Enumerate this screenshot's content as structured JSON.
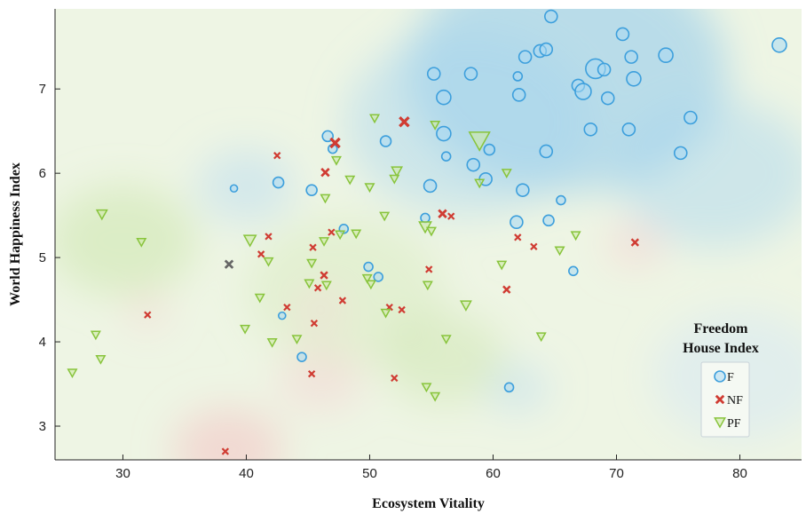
{
  "chart_data": {
    "type": "scatter",
    "xlabel": "Ecosystem Vitality",
    "ylabel": "World Happiness Index",
    "xlim": [
      24.5,
      85
    ],
    "ylim": [
      2.6,
      7.95
    ],
    "xticks": [
      30,
      40,
      50,
      60,
      70,
      80
    ],
    "yticks": [
      3,
      4,
      5,
      6,
      7
    ],
    "grid": false,
    "legend": {
      "title_line1": "Freedom",
      "title_line2": "House Index",
      "placement": "right"
    },
    "colors": {
      "F": "#3d9fdc",
      "NF": "#d03c33",
      "PF": "#88c43c",
      "other": "#666666"
    },
    "background_regions": [
      {
        "x": 66,
        "y": 7.2,
        "r": 13,
        "color": "#8ec9ec",
        "alpha": 0.55
      },
      {
        "x": 58,
        "y": 6.6,
        "r": 10,
        "color": "#a6d4ef",
        "alpha": 0.45
      },
      {
        "x": 78,
        "y": 6.0,
        "r": 8,
        "color": "#a6d4ef",
        "alpha": 0.45
      },
      {
        "x": 40,
        "y": 5.85,
        "r": 4,
        "color": "#b9dcf2",
        "alpha": 0.5
      },
      {
        "x": 62,
        "y": 3.45,
        "r": 2.5,
        "color": "#b9dcf2",
        "alpha": 0.5
      },
      {
        "x": 80,
        "y": 3.6,
        "r": 7,
        "color": "#d4e8f6",
        "alpha": 0.5
      },
      {
        "x": 30,
        "y": 5.2,
        "r": 6,
        "color": "#c6e2a2",
        "alpha": 0.45
      },
      {
        "x": 48,
        "y": 4.6,
        "r": 8,
        "color": "#d3e9b7",
        "alpha": 0.4
      },
      {
        "x": 56,
        "y": 3.8,
        "r": 5,
        "color": "#c6e2a2",
        "alpha": 0.4
      },
      {
        "x": 38.5,
        "y": 2.72,
        "r": 4.5,
        "color": "#f4c6c6",
        "alpha": 0.6
      },
      {
        "x": 46,
        "y": 3.55,
        "r": 3.5,
        "color": "#f6d3d3",
        "alpha": 0.5
      },
      {
        "x": 32,
        "y": 4.35,
        "r": 1.6,
        "color": "#f6d0d0",
        "alpha": 0.6
      },
      {
        "x": 71.5,
        "y": 5.15,
        "r": 2.2,
        "color": "#f6d0d0",
        "alpha": 0.6
      },
      {
        "x": 46,
        "y": 4.4,
        "r": 2.2,
        "color": "#f8dada",
        "alpha": 0.5
      }
    ],
    "series": [
      {
        "name": "F",
        "marker": "circle",
        "points": [
          [
            64.7,
            7.86,
            7
          ],
          [
            70.5,
            7.65,
            7
          ],
          [
            83.2,
            7.52,
            8
          ],
          [
            63.8,
            7.45,
            7
          ],
          [
            64.3,
            7.47,
            7
          ],
          [
            62.6,
            7.38,
            7
          ],
          [
            71.2,
            7.38,
            7
          ],
          [
            74.0,
            7.4,
            8
          ],
          [
            68.3,
            7.24,
            11
          ],
          [
            69.0,
            7.23,
            7
          ],
          [
            55.2,
            7.18,
            7
          ],
          [
            58.2,
            7.18,
            7
          ],
          [
            62.0,
            7.15,
            5
          ],
          [
            71.4,
            7.12,
            8
          ],
          [
            66.9,
            7.04,
            7
          ],
          [
            67.3,
            6.97,
            9
          ],
          [
            62.1,
            6.93,
            7
          ],
          [
            56.0,
            6.9,
            8
          ],
          [
            69.3,
            6.89,
            7
          ],
          [
            76.0,
            6.66,
            7
          ],
          [
            67.9,
            6.52,
            7
          ],
          [
            71.0,
            6.52,
            7
          ],
          [
            56.0,
            6.47,
            8
          ],
          [
            46.6,
            6.44,
            6
          ],
          [
            51.3,
            6.38,
            6
          ],
          [
            47.0,
            6.29,
            5
          ],
          [
            59.7,
            6.28,
            6
          ],
          [
            64.3,
            6.26,
            7
          ],
          [
            75.2,
            6.24,
            7
          ],
          [
            56.2,
            6.2,
            5
          ],
          [
            58.4,
            6.1,
            7
          ],
          [
            59.4,
            5.93,
            7
          ],
          [
            42.6,
            5.89,
            6
          ],
          [
            54.9,
            5.85,
            7
          ],
          [
            39.0,
            5.82,
            4
          ],
          [
            45.3,
            5.8,
            6
          ],
          [
            62.4,
            5.8,
            7
          ],
          [
            65.5,
            5.68,
            5
          ],
          [
            54.5,
            5.47,
            5
          ],
          [
            64.5,
            5.44,
            6
          ],
          [
            61.9,
            5.42,
            7
          ],
          [
            47.9,
            5.34,
            5
          ],
          [
            49.9,
            4.89,
            5
          ],
          [
            66.5,
            4.84,
            5
          ],
          [
            50.7,
            4.77,
            5
          ],
          [
            42.9,
            4.31,
            4
          ],
          [
            44.5,
            3.82,
            5
          ],
          [
            61.3,
            3.46,
            5
          ]
        ]
      },
      {
        "name": "NF",
        "marker": "x",
        "points": [
          [
            52.8,
            6.61,
            6
          ],
          [
            47.2,
            6.36,
            6
          ],
          [
            42.5,
            6.21,
            4
          ],
          [
            46.4,
            6.01,
            5
          ],
          [
            55.9,
            5.52,
            5
          ],
          [
            56.6,
            5.49,
            4
          ],
          [
            46.9,
            5.3,
            4
          ],
          [
            41.8,
            5.25,
            4
          ],
          [
            62.0,
            5.24,
            4
          ],
          [
            71.5,
            5.18,
            4.5
          ],
          [
            63.3,
            5.13,
            4
          ],
          [
            45.4,
            5.12,
            4
          ],
          [
            41.2,
            5.04,
            4
          ],
          [
            54.8,
            4.86,
            4
          ],
          [
            46.3,
            4.79,
            4.5
          ],
          [
            45.8,
            4.64,
            4
          ],
          [
            61.1,
            4.62,
            4.5
          ],
          [
            47.8,
            4.49,
            4
          ],
          [
            51.6,
            4.41,
            4
          ],
          [
            43.3,
            4.41,
            4
          ],
          [
            52.6,
            4.38,
            4
          ],
          [
            32.0,
            4.32,
            4
          ],
          [
            45.5,
            4.22,
            4
          ],
          [
            45.3,
            3.62,
            4
          ],
          [
            52.0,
            3.57,
            4
          ],
          [
            38.3,
            2.7,
            4
          ]
        ]
      },
      {
        "name": "PF",
        "marker": "triangle",
        "points": [
          [
            58.9,
            6.38,
            12
          ],
          [
            50.4,
            6.65,
            5
          ],
          [
            55.3,
            6.57,
            5
          ],
          [
            47.3,
            6.15,
            5
          ],
          [
            52.2,
            6.02,
            6
          ],
          [
            61.1,
            6.0,
            5
          ],
          [
            52.0,
            5.93,
            5
          ],
          [
            48.4,
            5.92,
            5
          ],
          [
            58.9,
            5.88,
            5
          ],
          [
            50.0,
            5.83,
            5
          ],
          [
            46.4,
            5.7,
            5
          ],
          [
            28.3,
            5.51,
            6
          ],
          [
            51.2,
            5.49,
            5
          ],
          [
            54.5,
            5.36,
            7
          ],
          [
            55.0,
            5.31,
            5
          ],
          [
            48.9,
            5.28,
            5
          ],
          [
            47.6,
            5.27,
            5
          ],
          [
            66.7,
            5.26,
            5
          ],
          [
            40.3,
            5.2,
            7
          ],
          [
            46.3,
            5.19,
            5
          ],
          [
            31.5,
            5.18,
            5
          ],
          [
            65.4,
            5.08,
            5
          ],
          [
            41.8,
            4.95,
            5
          ],
          [
            45.3,
            4.93,
            5
          ],
          [
            60.7,
            4.91,
            5
          ],
          [
            49.8,
            4.75,
            5
          ],
          [
            45.1,
            4.69,
            5
          ],
          [
            50.1,
            4.68,
            5
          ],
          [
            54.7,
            4.67,
            5
          ],
          [
            46.5,
            4.67,
            5
          ],
          [
            41.1,
            4.52,
            5
          ],
          [
            57.8,
            4.43,
            6
          ],
          [
            51.3,
            4.34,
            5
          ],
          [
            39.9,
            4.15,
            5
          ],
          [
            27.8,
            4.08,
            5
          ],
          [
            63.9,
            4.06,
            5
          ],
          [
            56.2,
            4.03,
            5
          ],
          [
            44.1,
            4.03,
            5
          ],
          [
            42.1,
            3.99,
            5
          ],
          [
            28.2,
            3.79,
            5
          ],
          [
            25.9,
            3.63,
            5
          ],
          [
            54.6,
            3.46,
            5
          ],
          [
            55.3,
            3.35,
            5
          ]
        ]
      },
      {
        "name": "",
        "marker": "x-gray",
        "points": [
          [
            38.6,
            4.92,
            5
          ]
        ]
      }
    ]
  }
}
